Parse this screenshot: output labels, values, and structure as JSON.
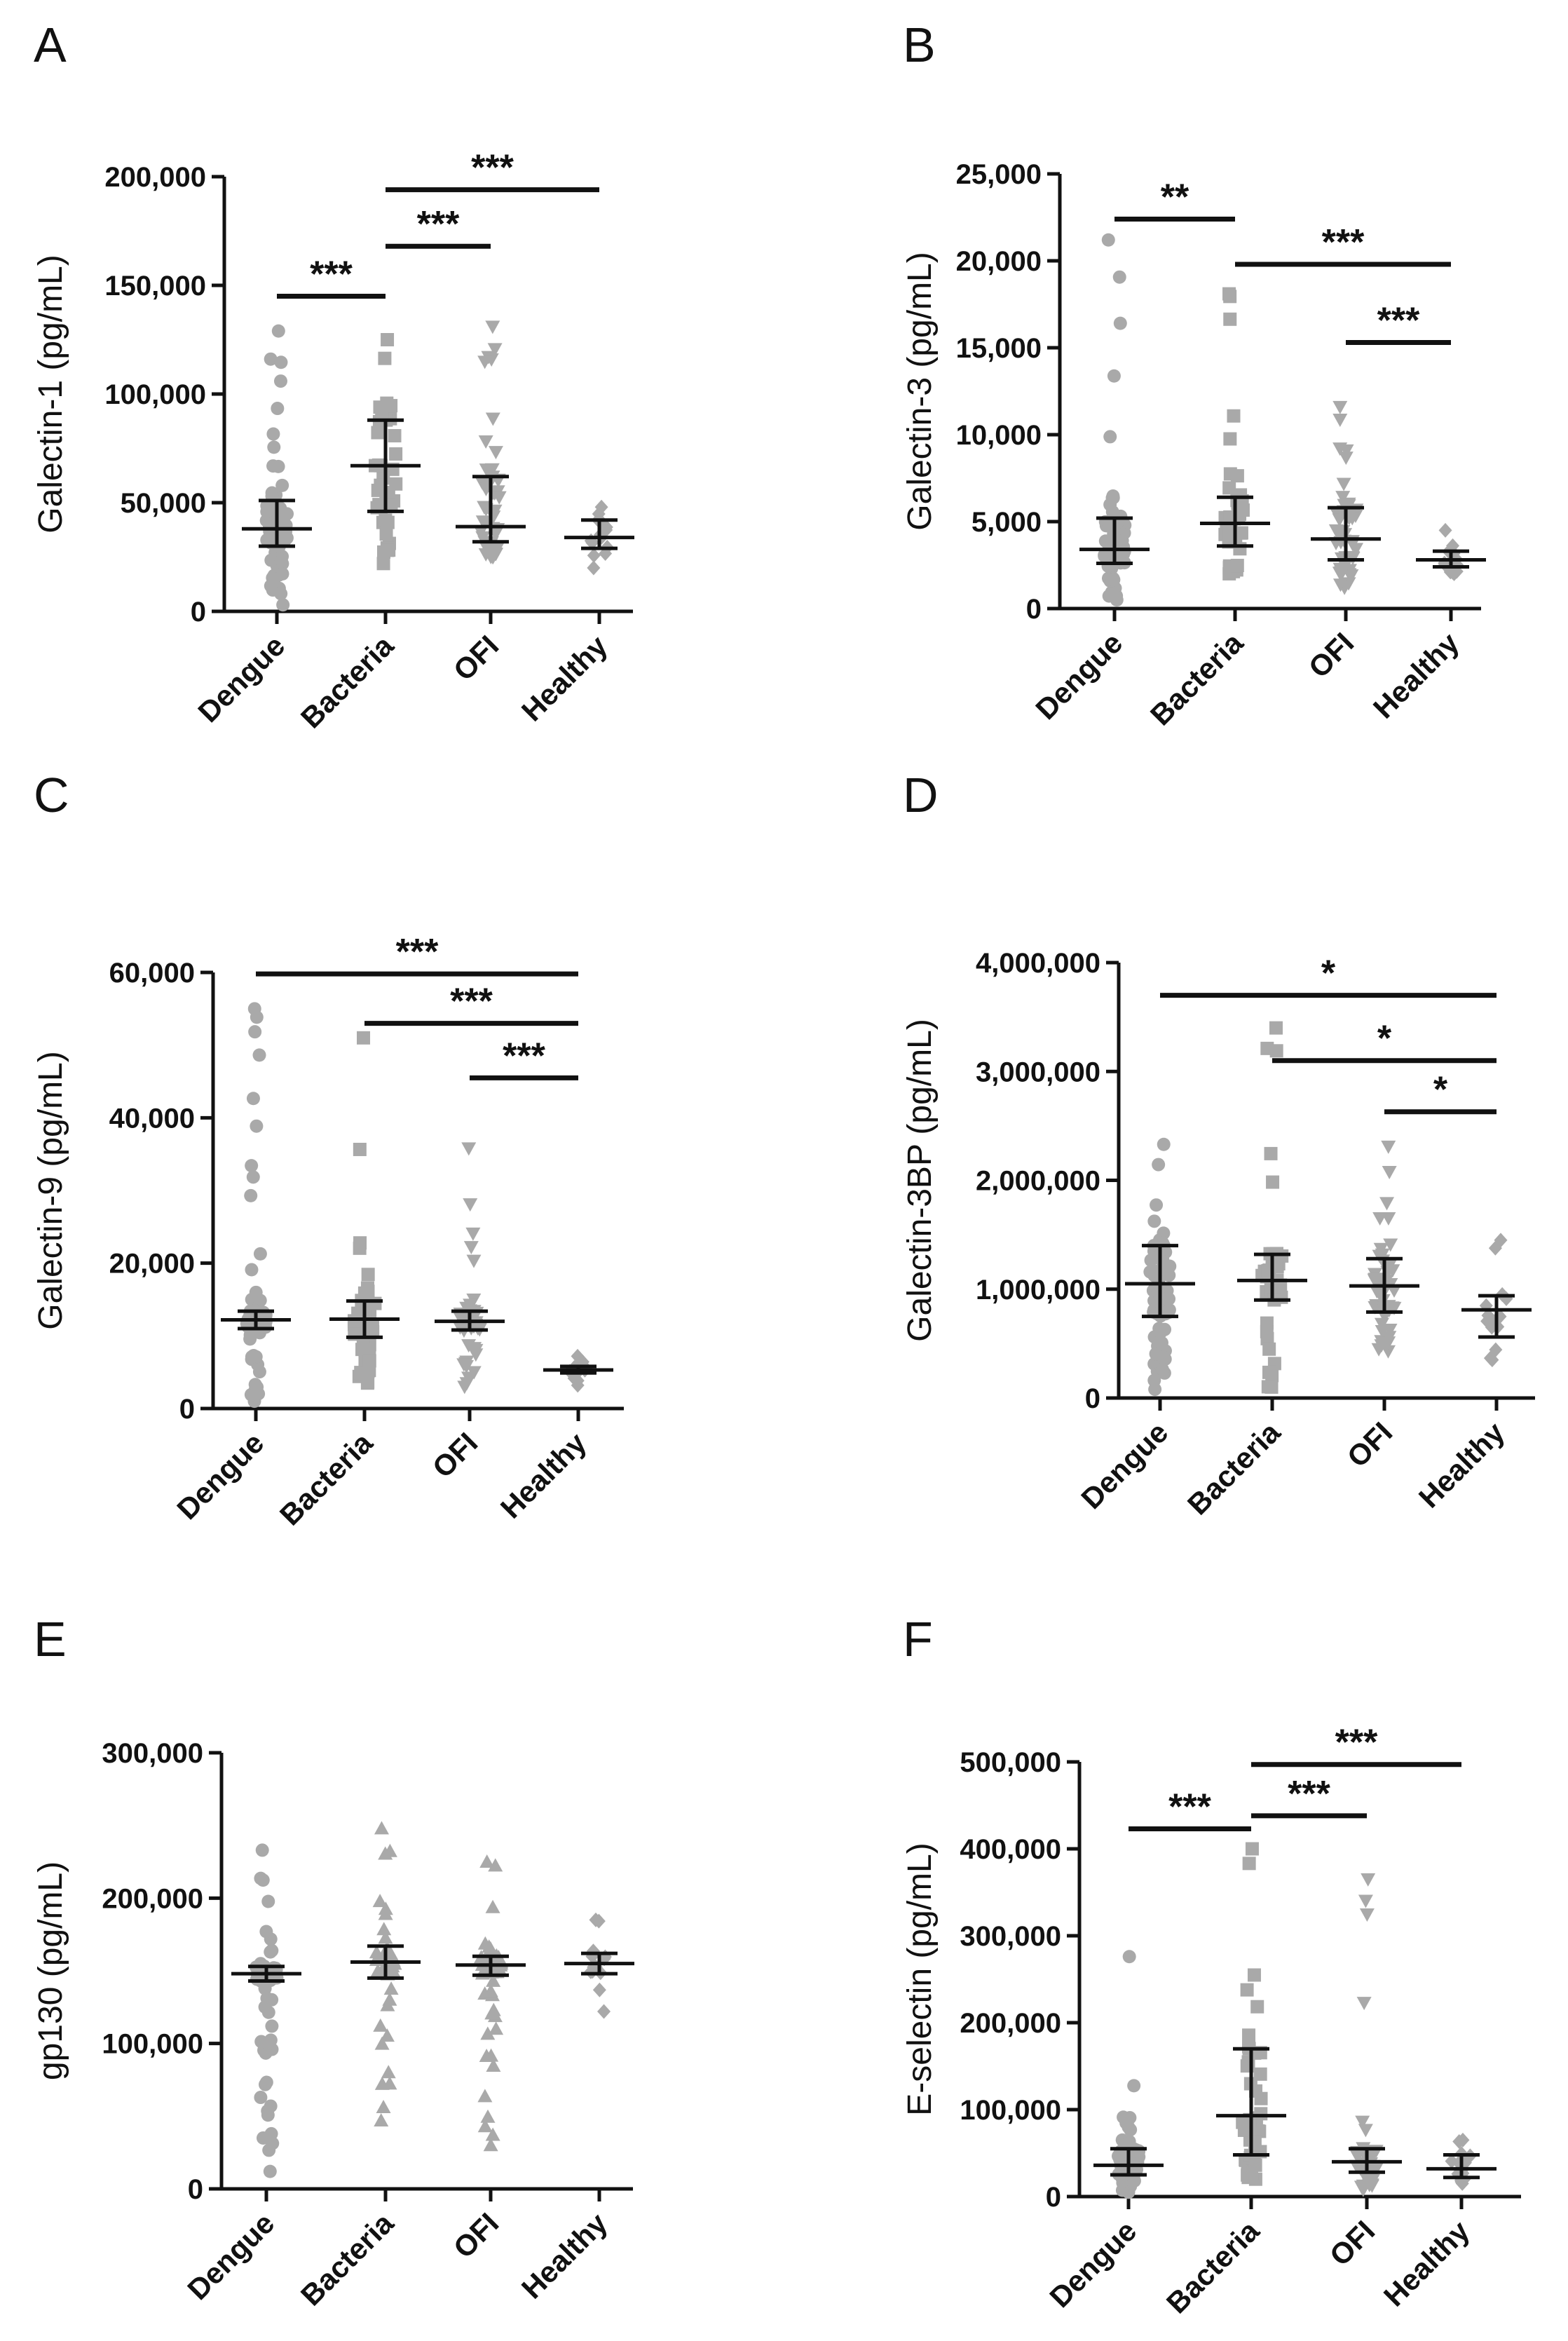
{
  "chart_data": [
    {
      "panel": "A",
      "type": "scatter",
      "ylabel": "Galectin-1 (pg/mL)",
      "categories": [
        "Dengue",
        "Bacteria",
        "OFI",
        "Healthy"
      ],
      "ylim": [
        0,
        200000
      ],
      "yticks": [
        0,
        50000,
        100000,
        150000,
        200000
      ],
      "ytick_labels": [
        "0",
        "50,000",
        "100,000",
        "150,000",
        "200,000"
      ],
      "summary": [
        {
          "group": "Dengue",
          "median": 38000,
          "q1": 30000,
          "q3": 51000
        },
        {
          "group": "Bacteria",
          "median": 67000,
          "q1": 46000,
          "q3": 88000
        },
        {
          "group": "OFI",
          "median": 39000,
          "q1": 32000,
          "q3": 62000
        },
        {
          "group": "Healthy",
          "median": 34000,
          "q1": 29000,
          "q3": 42000
        }
      ],
      "points": [
        {
          "group": "Dengue",
          "min": 3000,
          "max": 129000,
          "n": 70,
          "marker": "circle"
        },
        {
          "group": "Bacteria",
          "min": 22000,
          "max": 125000,
          "n": 40,
          "marker": "square"
        },
        {
          "group": "OFI",
          "min": 25000,
          "max": 131000,
          "n": 50,
          "marker": "triangle-down"
        },
        {
          "group": "Healthy",
          "min": 20000,
          "max": 48000,
          "n": 14,
          "marker": "diamond"
        }
      ],
      "significance": [
        {
          "from": "Dengue",
          "to": "Bacteria",
          "label": "***",
          "y": 145000
        },
        {
          "from": "Bacteria",
          "to": "OFI",
          "label": "***",
          "y": 168000
        },
        {
          "from": "Bacteria",
          "to": "Healthy",
          "label": "***",
          "y": 194000
        }
      ]
    },
    {
      "panel": "B",
      "type": "scatter",
      "ylabel": "Galectin-3 (pg/mL)",
      "categories": [
        "Dengue",
        "Bacteria",
        "OFI",
        "Healthy"
      ],
      "ylim": [
        0,
        25000
      ],
      "yticks": [
        0,
        5000,
        10000,
        15000,
        20000,
        25000
      ],
      "ytick_labels": [
        "0",
        "5,000",
        "10,000",
        "15,000",
        "20,000",
        "25,000"
      ],
      "summary": [
        {
          "group": "Dengue",
          "median": 3400,
          "q1": 2600,
          "q3": 5200
        },
        {
          "group": "Bacteria",
          "median": 4900,
          "q1": 3600,
          "q3": 6400
        },
        {
          "group": "OFI",
          "median": 4000,
          "q1": 2800,
          "q3": 5800
        },
        {
          "group": "Healthy",
          "median": 2800,
          "q1": 2400,
          "q3": 3300
        }
      ],
      "points": [
        {
          "group": "Dengue",
          "min": 500,
          "max": 21200,
          "n": 70,
          "marker": "circle"
        },
        {
          "group": "Bacteria",
          "min": 2000,
          "max": 18100,
          "n": 40,
          "marker": "square"
        },
        {
          "group": "OFI",
          "min": 1200,
          "max": 11600,
          "n": 50,
          "marker": "triangle-down"
        },
        {
          "group": "Healthy",
          "min": 2000,
          "max": 4500,
          "n": 14,
          "marker": "diamond"
        }
      ],
      "significance": [
        {
          "from": "Dengue",
          "to": "Bacteria",
          "label": "**",
          "y": 22400
        },
        {
          "from": "Bacteria",
          "to": "Healthy",
          "label": "***",
          "y": 19800
        },
        {
          "from": "OFI",
          "to": "Healthy",
          "label": "***",
          "y": 15300
        }
      ]
    },
    {
      "panel": "C",
      "type": "scatter",
      "ylabel": "Galectin-9 (pg/mL)",
      "categories": [
        "Dengue",
        "Bacteria",
        "OFI",
        "Healthy"
      ],
      "ylim": [
        0,
        60000
      ],
      "yticks": [
        0,
        20000,
        40000,
        60000
      ],
      "ytick_labels": [
        "0",
        "20,000",
        "40,000",
        "60,000"
      ],
      "summary": [
        {
          "group": "Dengue",
          "median": 12200,
          "q1": 11000,
          "q3": 13400
        },
        {
          "group": "Bacteria",
          "median": 12300,
          "q1": 9800,
          "q3": 14800
        },
        {
          "group": "OFI",
          "median": 12000,
          "q1": 10800,
          "q3": 13400
        },
        {
          "group": "Healthy",
          "median": 5300,
          "q1": 4900,
          "q3": 5800
        }
      ],
      "points": [
        {
          "group": "Dengue",
          "min": 1000,
          "max": 55000,
          "n": 70,
          "marker": "circle"
        },
        {
          "group": "Bacteria",
          "min": 3500,
          "max": 51000,
          "n": 40,
          "marker": "square"
        },
        {
          "group": "OFI",
          "min": 3000,
          "max": 35800,
          "n": 50,
          "marker": "triangle-down"
        },
        {
          "group": "Healthy",
          "min": 3200,
          "max": 7200,
          "n": 14,
          "marker": "diamond"
        }
      ],
      "significance": [
        {
          "from": "Dengue",
          "to": "Healthy",
          "label": "***",
          "y": 59800
        },
        {
          "from": "Bacteria",
          "to": "Healthy",
          "label": "***",
          "y": 53000
        },
        {
          "from": "OFI",
          "to": "Healthy",
          "label": "***",
          "y": 45500
        }
      ]
    },
    {
      "panel": "D",
      "type": "scatter",
      "ylabel": "Galectin-3BP (pg/mL)",
      "categories": [
        "Dengue",
        "Bacteria",
        "OFI",
        "Healthy"
      ],
      "ylim": [
        0,
        4000000
      ],
      "yticks": [
        0,
        1000000,
        2000000,
        3000000,
        4000000
      ],
      "ytick_labels": [
        "0",
        "1,000,000",
        "2,000,000",
        "3,000,000",
        "4,000,000"
      ],
      "summary": [
        {
          "group": "Dengue",
          "median": 1050000,
          "q1": 750000,
          "q3": 1400000
        },
        {
          "group": "Bacteria",
          "median": 1080000,
          "q1": 900000,
          "q3": 1320000
        },
        {
          "group": "OFI",
          "median": 1030000,
          "q1": 790000,
          "q3": 1280000
        },
        {
          "group": "Healthy",
          "median": 810000,
          "q1": 560000,
          "q3": 940000
        }
      ],
      "points": [
        {
          "group": "Dengue",
          "min": 80000,
          "max": 2330000,
          "n": 70,
          "marker": "circle"
        },
        {
          "group": "Bacteria",
          "min": 100000,
          "max": 3400000,
          "n": 40,
          "marker": "square"
        },
        {
          "group": "OFI",
          "min": 430000,
          "max": 2310000,
          "n": 50,
          "marker": "triangle-down"
        },
        {
          "group": "Healthy",
          "min": 350000,
          "max": 1450000,
          "n": 14,
          "marker": "diamond"
        }
      ],
      "significance": [
        {
          "from": "Dengue",
          "to": "Healthy",
          "label": "*",
          "y": 3700000
        },
        {
          "from": "Bacteria",
          "to": "Healthy",
          "label": "*",
          "y": 3100000
        },
        {
          "from": "OFI",
          "to": "Healthy",
          "label": "*",
          "y": 2630000
        }
      ]
    },
    {
      "panel": "E",
      "type": "scatter",
      "ylabel": "gp130 (pg/mL)",
      "categories": [
        "Dengue",
        "Bacteria",
        "OFI",
        "Healthy"
      ],
      "ylim": [
        0,
        300000
      ],
      "yticks": [
        0,
        100000,
        200000,
        300000
      ],
      "ytick_labels": [
        "0",
        "100,000",
        "200,000",
        "300,000"
      ],
      "summary": [
        {
          "group": "Dengue",
          "median": 148000,
          "q1": 143000,
          "q3": 153000
        },
        {
          "group": "Bacteria",
          "median": 156000,
          "q1": 145000,
          "q3": 167000
        },
        {
          "group": "OFI",
          "median": 154000,
          "q1": 147000,
          "q3": 160000
        },
        {
          "group": "Healthy",
          "median": 155000,
          "q1": 148000,
          "q3": 162000
        }
      ],
      "points": [
        {
          "group": "Dengue",
          "min": 12000,
          "max": 233000,
          "n": 80,
          "marker": "circle"
        },
        {
          "group": "Bacteria",
          "min": 47000,
          "max": 248000,
          "n": 40,
          "marker": "triangle-up"
        },
        {
          "group": "OFI",
          "min": 30000,
          "max": 225000,
          "n": 60,
          "marker": "triangle-up"
        },
        {
          "group": "Healthy",
          "min": 122000,
          "max": 185000,
          "n": 14,
          "marker": "diamond"
        }
      ],
      "significance": []
    },
    {
      "panel": "F",
      "type": "scatter",
      "ylabel": "E-selectin (pg/mL)",
      "categories": [
        "Dengue",
        "Bacteria",
        "OFI",
        "Healthy"
      ],
      "ylim": [
        0,
        500000
      ],
      "yticks": [
        0,
        100000,
        200000,
        300000,
        400000,
        500000
      ],
      "ytick_labels": [
        "0",
        "100,000",
        "200,000",
        "300,000",
        "400,000",
        "500,000"
      ],
      "summary": [
        {
          "group": "Dengue",
          "median": 36000,
          "q1": 25000,
          "q3": 55000
        },
        {
          "group": "Bacteria",
          "median": 93000,
          "q1": 48000,
          "q3": 170000
        },
        {
          "group": "OFI",
          "median": 40000,
          "q1": 28000,
          "q3": 55000
        },
        {
          "group": "Healthy",
          "median": 32000,
          "q1": 22000,
          "q3": 48000
        }
      ],
      "points": [
        {
          "group": "Dengue",
          "min": 5000,
          "max": 276000,
          "n": 70,
          "marker": "circle"
        },
        {
          "group": "Bacteria",
          "min": 20000,
          "max": 400000,
          "n": 40,
          "marker": "square"
        },
        {
          "group": "OFI",
          "min": 8000,
          "max": 365000,
          "n": 50,
          "marker": "triangle-down"
        },
        {
          "group": "Healthy",
          "min": 15000,
          "max": 65000,
          "n": 14,
          "marker": "diamond"
        }
      ],
      "significance": [
        {
          "from": "Dengue",
          "to": "Bacteria",
          "label": "***",
          "y": 423000
        },
        {
          "from": "Bacteria",
          "to": "OFI",
          "label": "***",
          "y": 438000
        },
        {
          "from": "Bacteria",
          "to": "Healthy",
          "label": "***",
          "y": 497000
        }
      ]
    }
  ]
}
